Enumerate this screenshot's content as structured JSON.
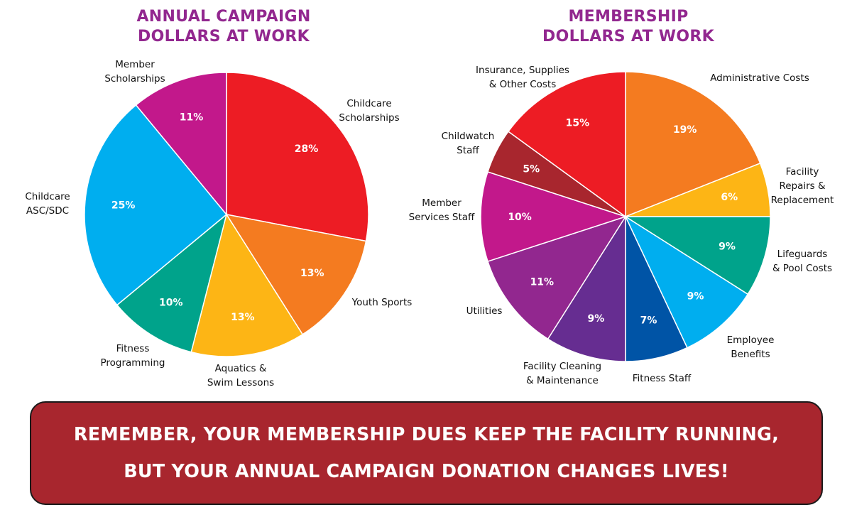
{
  "titles": {
    "left": [
      "ANNUAL CAMPAIGN",
      "DOLLARS AT WORK"
    ],
    "right": [
      "MEMBERSHIP",
      "DOLLARS AT WORK"
    ]
  },
  "banner": {
    "line1": "REMEMBER, YOUR MEMBERSHIP DUES KEEP THE FACILITY RUNNING,",
    "line2": "BUT YOUR ANNUAL CAMPAIGN DONATION CHANGES LIVES!"
  },
  "chart_data": [
    {
      "type": "pie",
      "title": "ANNUAL CAMPAIGN DOLLARS AT WORK",
      "slices": [
        {
          "label": [
            "Childcare",
            "Scholarships"
          ],
          "value": 28,
          "display": "28%",
          "color": "#ed1c24"
        },
        {
          "label": [
            "Youth Sports"
          ],
          "value": 13,
          "display": "13%",
          "color": "#f47b20"
        },
        {
          "label": [
            "Aquatics &",
            "Swim Lessons"
          ],
          "value": 13,
          "display": "13%",
          "color": "#fdb515"
        },
        {
          "label": [
            "Fitness",
            "Programming"
          ],
          "value": 10,
          "display": "10%",
          "color": "#00a38b"
        },
        {
          "label": [
            "Childcare",
            "ASC/SDC"
          ],
          "value": 25,
          "display": "25%",
          "color": "#00aeef"
        },
        {
          "label": [
            "Member",
            "Scholarships"
          ],
          "value": 11,
          "display": "11%",
          "color": "#c2188b"
        }
      ]
    },
    {
      "type": "pie",
      "title": "MEMBERSHIP DOLLARS AT WORK",
      "slices": [
        {
          "label": [
            "Administrative Costs"
          ],
          "value": 19,
          "display": "19%",
          "color": "#f47b20"
        },
        {
          "label": [
            "Facility",
            "Repairs &",
            "Replacement"
          ],
          "value": 6,
          "display": "6%",
          "color": "#fdb515"
        },
        {
          "label": [
            "Lifeguards",
            "& Pool Costs"
          ],
          "value": 9,
          "display": "9%",
          "color": "#00a38b"
        },
        {
          "label": [
            "Employee",
            "Benefits"
          ],
          "value": 9,
          "display": "9%",
          "color": "#00aeef"
        },
        {
          "label": [
            "Fitness Staff"
          ],
          "value": 7,
          "display": "7%",
          "color": "#0054a6"
        },
        {
          "label": [
            "Facility Cleaning",
            "& Maintenance"
          ],
          "value": 9,
          "display": "9%",
          "color": "#662d91"
        },
        {
          "label": [
            "Utilities"
          ],
          "value": 11,
          "display": "11%",
          "color": "#92278f"
        },
        {
          "label": [
            "Member",
            "Services Staff"
          ],
          "value": 10,
          "display": "10%",
          "color": "#c2188b"
        },
        {
          "label": [
            "Childwatch",
            "Staff"
          ],
          "value": 5,
          "display": "5%",
          "color": "#a8262e"
        },
        {
          "label": [
            "Insurance, Supplies",
            "& Other Costs"
          ],
          "value": 15,
          "display": "15%",
          "color": "#ed1c24"
        }
      ]
    }
  ]
}
